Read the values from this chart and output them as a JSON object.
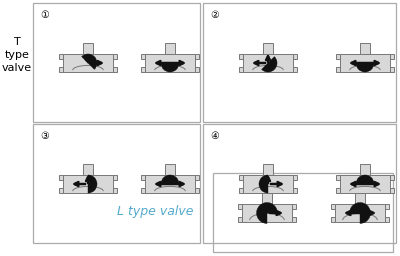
{
  "bg_color": "#ffffff",
  "body_fill": "#d8d8d8",
  "body_edge": "#777777",
  "disk_color": "#111111",
  "arrow_color": "#111111",
  "box_edge": "#aaaaaa",
  "t_label": "T\ntype\nvalve",
  "l_label": "L type valve",
  "l_label_color": "#55aacc",
  "labels": [
    "①",
    "②",
    "③",
    "④"
  ],
  "label_fontsize": 7,
  "side_fontsize": 8
}
